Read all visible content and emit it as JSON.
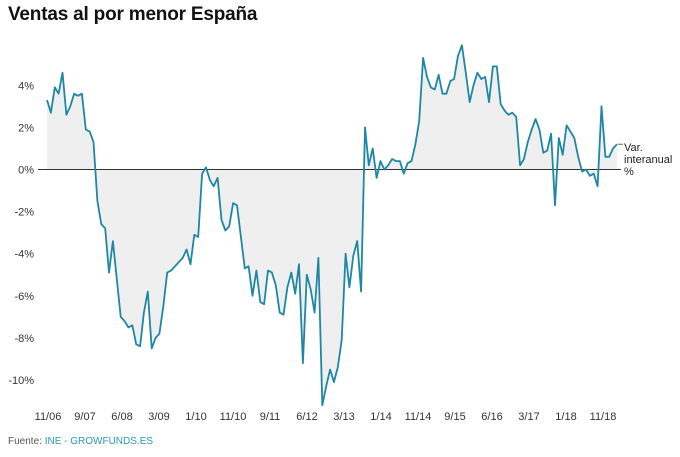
{
  "header": {
    "title": "Ventas al por menor España"
  },
  "footer": {
    "source_label": "Fuente: ",
    "source_value": "INE - GROWFUNDS.ES"
  },
  "colors": {
    "line": "#1e87a3",
    "area": "#efefef",
    "zero_line": "#333333"
  },
  "chart_data": {
    "type": "area",
    "title": "Ventas al por menor España",
    "xlabel": "",
    "ylabel": "",
    "ylim": [
      -11.5,
      6
    ],
    "yticks": [
      4,
      2,
      0,
      -2,
      -4,
      -6,
      -8,
      -10
    ],
    "ytick_labels": [
      "4%",
      "2%",
      "0%",
      "-2%",
      "-4%",
      "-6%",
      "-8%",
      "-10%"
    ],
    "xtick_labels": [
      "11/06",
      "9/07",
      "6/08",
      "3/09",
      "1/10",
      "11/10",
      "9/11",
      "6/12",
      "3/13",
      "1/14",
      "11/14",
      "9/15",
      "6/16",
      "3/17",
      "1/18",
      "11/18"
    ],
    "grid": false,
    "series": [
      {
        "name": "Var. interanual %",
        "values": [
          3.3,
          2.7,
          3.9,
          3.6,
          4.6,
          2.6,
          3.0,
          3.6,
          3.5,
          3.6,
          1.9,
          1.8,
          1.3,
          -1.5,
          -2.6,
          -2.8,
          -4.9,
          -3.4,
          -5.2,
          -7.0,
          -7.2,
          -7.5,
          -7.4,
          -8.3,
          -8.4,
          -6.8,
          -5.8,
          -8.5,
          -8.0,
          -7.8,
          -6.5,
          -4.9,
          -4.8,
          -4.6,
          -4.4,
          -4.2,
          -3.8,
          -4.5,
          -3.1,
          -3.2,
          -0.2,
          0.1,
          -0.5,
          -0.8,
          -0.4,
          -2.4,
          -2.9,
          -2.7,
          -1.6,
          -1.7,
          -3.2,
          -4.7,
          -4.6,
          -6.0,
          -4.8,
          -6.3,
          -6.4,
          -4.8,
          -4.9,
          -5.5,
          -6.8,
          -6.9,
          -5.6,
          -4.9,
          -5.9,
          -4.5,
          -9.2,
          -5.0,
          -5.7,
          -6.8,
          -4.2,
          -11.2,
          -10.3,
          -9.5,
          -10.1,
          -9.4,
          -8.1,
          -4.0,
          -5.6,
          -4.1,
          -3.4,
          -5.8,
          2.0,
          0.2,
          1.0,
          -0.4,
          0.4,
          0.0,
          0.2,
          0.5,
          0.4,
          0.4,
          -0.2,
          0.3,
          0.4,
          1.2,
          2.3,
          5.3,
          4.4,
          3.9,
          3.8,
          4.5,
          3.6,
          3.6,
          4.2,
          4.3,
          5.4,
          5.9,
          4.6,
          3.2,
          4.0,
          4.6,
          4.3,
          4.4,
          3.2,
          4.9,
          4.9,
          3.1,
          2.8,
          2.6,
          2.7,
          2.5,
          0.2,
          0.5,
          1.3,
          1.9,
          2.4,
          1.9,
          0.8,
          0.9,
          1.7,
          -1.7,
          1.5,
          0.7,
          2.1,
          1.8,
          1.5,
          0.6,
          -0.1,
          0.0,
          -0.3,
          -0.2,
          -0.8,
          3.0,
          0.6,
          0.6,
          1.0,
          1.2
        ]
      }
    ]
  }
}
